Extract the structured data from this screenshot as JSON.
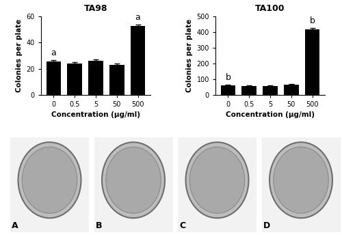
{
  "chart_data": [
    {
      "type": "bar",
      "title": "TA98",
      "x_label": "Concentration (μg/ml)",
      "y_label": "Colonies per plate",
      "categories": [
        "0",
        "0.5",
        "5",
        "50",
        "500"
      ],
      "values": [
        25.5,
        24,
        26,
        23,
        53
      ],
      "errors": [
        1,
        1,
        1,
        1,
        1
      ],
      "color": "#000000",
      "ylim": [
        0,
        60
      ],
      "yticks": [
        0,
        20,
        40,
        60
      ],
      "annotations": [
        {
          "x": "0",
          "text": "a"
        },
        {
          "x": "500",
          "text": "a"
        }
      ]
    },
    {
      "type": "bar",
      "title": "TA100",
      "x_label": "Concentration (μg/ml)",
      "y_label": "Colonies per plate",
      "categories": [
        "0",
        "0.5",
        "5",
        "50",
        "500"
      ],
      "values": [
        62,
        57,
        58,
        66,
        420
      ],
      "errors": [
        3,
        2,
        2,
        2,
        5
      ],
      "color": "#000000",
      "ylim": [
        0,
        500
      ],
      "yticks": [
        0,
        100,
        200,
        300,
        400,
        500
      ],
      "annotations": [
        {
          "x": "0",
          "text": "b"
        },
        {
          "x": "500",
          "text": "b"
        }
      ]
    }
  ],
  "photo_labels": [
    "A",
    "B",
    "C",
    "D"
  ]
}
